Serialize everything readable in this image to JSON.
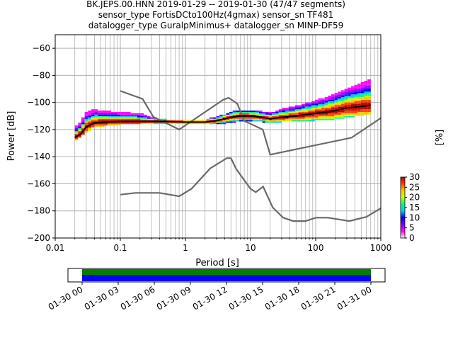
{
  "title_lines": [
    "BK.JEPS.00.HNN   2019-01-29 -- 2019-01-30  (47/47 segments)",
    "sensor_type FortisDCto100Hz(4gmax) sensor_sn TF481",
    "datalogger_type GuralpMinimus+ datalogger_sn MINP-DF59"
  ],
  "chart_data": {
    "type": "heatmap",
    "xlabel": "Period [s]",
    "ylabel": "Power [dB]",
    "xscale": "log",
    "xlim": [
      0.01,
      1000
    ],
    "ylim": [
      -200,
      -50
    ],
    "xticks": [
      0.01,
      0.1,
      1,
      10,
      100,
      1000
    ],
    "xtick_labels": [
      "0.01",
      "0.1",
      "1",
      "10",
      "100",
      "1000"
    ],
    "yticks": [
      -200,
      -180,
      -160,
      -140,
      -120,
      -100,
      -80,
      -60
    ],
    "ytick_labels": [
      "−200",
      "−180",
      "−160",
      "−140",
      "−120",
      "−100",
      "−80",
      "−60"
    ],
    "grid": true,
    "colorbar": {
      "label": "[%]",
      "range": [
        0,
        30
      ],
      "ticks": [
        0,
        5,
        10,
        15,
        20,
        25,
        30
      ],
      "colors": [
        "#ffffff",
        "#ff00ff",
        "#8000ff",
        "#0000ff",
        "#00c8ff",
        "#00ff80",
        "#c8ff00",
        "#ffc800",
        "#ff4000",
        "#c00000"
      ]
    },
    "mean_curve": {
      "name": "mean",
      "points": [
        [
          0.02,
          -126
        ],
        [
          0.025,
          -123
        ],
        [
          0.03,
          -118
        ],
        [
          0.04,
          -115
        ],
        [
          0.06,
          -114.5
        ],
        [
          0.1,
          -114
        ],
        [
          0.2,
          -114
        ],
        [
          0.5,
          -114
        ],
        [
          1,
          -114.5
        ],
        [
          2,
          -114.5
        ],
        [
          3,
          -113.5
        ],
        [
          4,
          -112
        ],
        [
          5,
          -111
        ],
        [
          7,
          -110
        ],
        [
          10,
          -110
        ],
        [
          15,
          -111
        ],
        [
          20,
          -112
        ],
        [
          30,
          -111
        ],
        [
          50,
          -110
        ],
        [
          70,
          -109
        ],
        [
          100,
          -108
        ],
        [
          150,
          -107
        ],
        [
          200,
          -106
        ],
        [
          300,
          -104
        ],
        [
          500,
          -103
        ],
        [
          700,
          -102
        ]
      ]
    },
    "nhnm": {
      "name": "NHNM",
      "points": [
        [
          0.1,
          -91.5
        ],
        [
          0.22,
          -97.4
        ],
        [
          0.32,
          -110.5
        ],
        [
          0.8,
          -120
        ],
        [
          3.8,
          -98
        ],
        [
          4.6,
          -96.5
        ],
        [
          6.3,
          -101
        ],
        [
          7.9,
          -113.5
        ],
        [
          15.4,
          -120
        ],
        [
          20,
          -138.5
        ],
        [
          354.8,
          -126
        ],
        [
          1000,
          -111.5
        ]
      ]
    },
    "nlnm": {
      "name": "NLNM",
      "points": [
        [
          0.1,
          -168
        ],
        [
          0.17,
          -166.7
        ],
        [
          0.4,
          -166.7
        ],
        [
          0.8,
          -169.2
        ],
        [
          1.24,
          -163.7
        ],
        [
          2.4,
          -148.6
        ],
        [
          4.3,
          -141.1
        ],
        [
          5,
          -141.1
        ],
        [
          6,
          -149
        ],
        [
          10,
          -163.8
        ],
        [
          12,
          -166.2
        ],
        [
          15.6,
          -162.1
        ],
        [
          21.9,
          -177.5
        ],
        [
          31.6,
          -185
        ],
        [
          45,
          -187.5
        ],
        [
          70,
          -187.5
        ],
        [
          101,
          -185
        ],
        [
          154,
          -185
        ],
        [
          328,
          -187.5
        ],
        [
          600,
          -184.4
        ],
        [
          1000,
          -178
        ]
      ]
    },
    "heat_band": [
      {
        "x": 0.02,
        "lo": -128,
        "hi": -118
      },
      {
        "x": 0.03,
        "lo": -122,
        "hi": -108
      },
      {
        "x": 0.04,
        "lo": -118,
        "hi": -105
      },
      {
        "x": 0.06,
        "lo": -117,
        "hi": -106
      },
      {
        "x": 0.1,
        "lo": -116,
        "hi": -107
      },
      {
        "x": 0.2,
        "lo": -116,
        "hi": -108
      },
      {
        "x": 0.3,
        "lo": -116,
        "hi": -111
      },
      {
        "x": 0.5,
        "lo": -116,
        "hi": -113
      },
      {
        "x": 1,
        "lo": -116,
        "hi": -113
      },
      {
        "x": 2,
        "lo": -116,
        "hi": -113
      },
      {
        "x": 4,
        "lo": -115,
        "hi": -109
      },
      {
        "x": 6,
        "lo": -114,
        "hi": -106
      },
      {
        "x": 10,
        "lo": -114,
        "hi": -106
      },
      {
        "x": 15,
        "lo": -114,
        "hi": -107
      },
      {
        "x": 20,
        "lo": -115,
        "hi": -108
      },
      {
        "x": 30,
        "lo": -114,
        "hi": -105
      },
      {
        "x": 50,
        "lo": -114,
        "hi": -103
      },
      {
        "x": 100,
        "lo": -113,
        "hi": -99
      },
      {
        "x": 200,
        "lo": -112,
        "hi": -94
      },
      {
        "x": 400,
        "lo": -110,
        "hi": -88
      },
      {
        "x": 700,
        "lo": -108,
        "hi": -83
      }
    ]
  },
  "timeline": {
    "tick_labels": [
      "01-30 00",
      "01-30 03",
      "01-30 06",
      "01-30 09",
      "01-30 12",
      "01-30 15",
      "01-30 18",
      "01-30 21",
      "01-31 00"
    ],
    "bar_colors": {
      "top": "#008000",
      "bottom": "#0000ff"
    }
  }
}
